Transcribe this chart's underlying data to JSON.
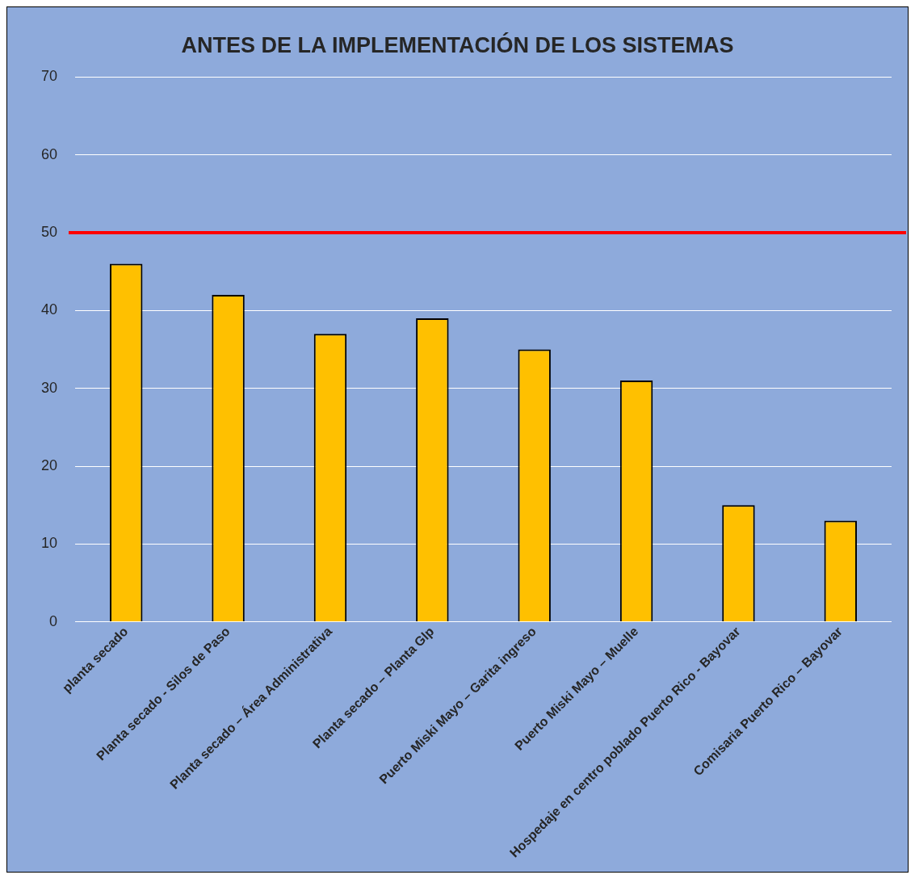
{
  "chart_data": {
    "type": "bar",
    "title": "ANTES DE LA IMPLEMENTACIÓN DE LOS SISTEMAS",
    "categories": [
      "planta secado",
      "Planta secado - Silos de Paso",
      "Planta secado – Área Administrativa",
      "Planta secado – Planta Glp",
      "Puerto Miski Mayo – Garita ingreso",
      "Puerto Miski Mayo – Muelle",
      "Hospedaje en centro poblado Puerto Rico - Bayovar",
      "Comisaria Puerto Rico – Bayovar"
    ],
    "values": [
      46,
      42,
      37,
      39,
      35,
      31,
      15,
      13
    ],
    "color": "#ffc000",
    "ylim": [
      0,
      70
    ],
    "yticks": [
      0,
      10,
      20,
      30,
      40,
      50,
      60,
      70
    ],
    "grid": "y",
    "ref_lines": [
      {
        "axis": "y",
        "value": 50,
        "color": "#ff0000"
      }
    ]
  }
}
